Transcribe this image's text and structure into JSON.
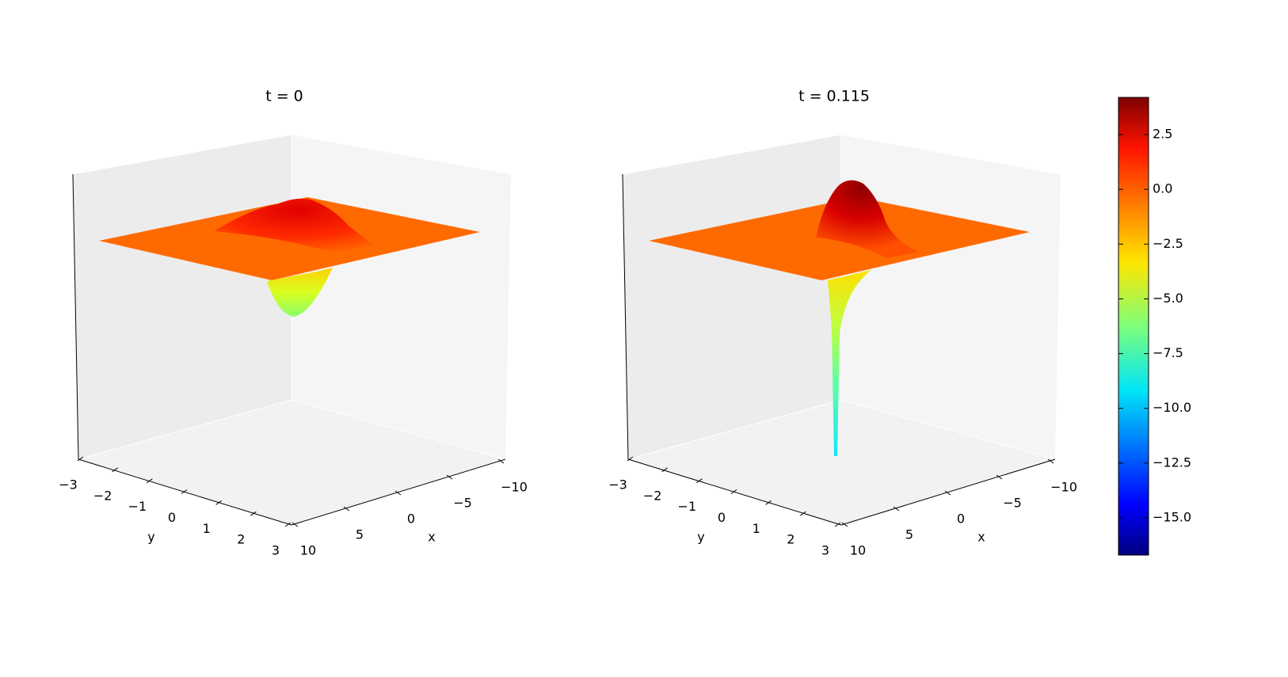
{
  "chart_data": [
    {
      "type": "surface3d",
      "title": "t = 0",
      "xlabel": "x",
      "ylabel": "y",
      "xlim": [
        10,
        -10
      ],
      "xticks": [
        {
          "value": -10,
          "label": "−10"
        },
        {
          "value": -5,
          "label": "−5"
        },
        0,
        5,
        10
      ],
      "ylim": [
        -3,
        3
      ],
      "yticks": [
        {
          "value": -3,
          "label": "−3"
        },
        {
          "value": -2,
          "label": "−2"
        },
        {
          "value": -1,
          "label": "−1"
        },
        0,
        1,
        2,
        3
      ],
      "colormap": "jet"
    },
    {
      "type": "surface3d",
      "title": "t = 0.115",
      "xlabel": "x",
      "ylabel": "y",
      "xlim": [
        10,
        -10
      ],
      "xticks": [
        {
          "value": -10,
          "label": "−10"
        },
        {
          "value": -5,
          "label": "−5"
        },
        0,
        5,
        10
      ],
      "ylim": [
        -3,
        3
      ],
      "yticks": [
        {
          "value": -3,
          "label": "−3"
        },
        {
          "value": -2,
          "label": "−2"
        },
        {
          "value": -1,
          "label": "−1"
        },
        0,
        1,
        2,
        3
      ],
      "colormap": "jet"
    },
    {
      "type": "colorbar",
      "colormap": "jet",
      "zlim": [
        -16.7,
        4.2
      ],
      "ticks": [
        2.5,
        {
          "value": 0,
          "label": "0.0"
        },
        {
          "value": -2.5,
          "label": "−2.5"
        },
        {
          "value": -5,
          "label": "−5.0"
        },
        {
          "value": -7.5,
          "label": "−7.5"
        },
        {
          "value": -10,
          "label": "−10.0"
        },
        {
          "value": -12.5,
          "label": "−12.5"
        },
        {
          "value": -15,
          "label": "−15.0"
        }
      ]
    }
  ]
}
